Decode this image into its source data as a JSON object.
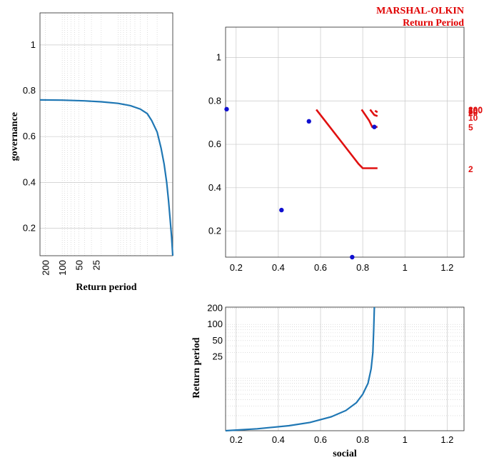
{
  "figure": {
    "title_line1": "MARSHAL-OLKIN",
    "title_line2": "Return Period"
  },
  "colors": {
    "curve": "#1f77b4",
    "isoline": "#e01010",
    "points": "#1010d0",
    "grid": "#c8c8c8"
  },
  "chart_data": [
    {
      "type": "line",
      "panel": "left",
      "xlabel": "Return period",
      "ylabel": "governance",
      "xscale": "log",
      "xdir": "reverse",
      "xticks": [
        200,
        100,
        50,
        25
      ],
      "xticklabels": [
        "200",
        "100",
        "50",
        "25"
      ],
      "yticks": [
        0.2,
        0.4,
        0.6,
        0.8,
        1
      ],
      "yticklabels": [
        "0.2",
        "0.4",
        "0.6",
        "0.8",
        "1"
      ],
      "ylim": [
        0.08,
        1.14
      ],
      "grid": true,
      "series": [
        {
          "points": [
            [
              250,
              0.76
            ],
            [
              100,
              0.759
            ],
            [
              40,
              0.756
            ],
            [
              20,
              0.752
            ],
            [
              10,
              0.745
            ],
            [
              6,
              0.735
            ],
            [
              4,
              0.72
            ],
            [
              3,
              0.7
            ],
            [
              2.5,
              0.67
            ],
            [
              2.0,
              0.62
            ],
            [
              1.7,
              0.55
            ],
            [
              1.5,
              0.48
            ],
            [
              1.35,
              0.4
            ],
            [
              1.25,
              0.32
            ],
            [
              1.17,
              0.24
            ],
            [
              1.1,
              0.16
            ],
            [
              1.05,
              0.08
            ]
          ]
        }
      ]
    },
    {
      "type": "scatter",
      "panel": "center",
      "xticks": [
        0.2,
        0.4,
        0.6,
        0.8,
        1,
        1.2
      ],
      "xticklabels": [
        "0.2",
        "0.4",
        "0.6",
        "0.8",
        "1",
        "1.2"
      ],
      "yticks": [
        0.2,
        0.4,
        0.6,
        0.8,
        1
      ],
      "yticklabels": [
        "0.2",
        "0.4",
        "0.6",
        "0.8",
        "1"
      ],
      "xlim": [
        0.15,
        1.28
      ],
      "ylim": [
        0.08,
        1.14
      ],
      "grid": true,
      "points": [
        [
          0.155,
          0.762
        ],
        [
          0.415,
          0.297
        ],
        [
          0.545,
          0.706
        ],
        [
          0.75,
          0.08
        ],
        [
          0.855,
          0.68
        ]
      ],
      "isolines": [
        {
          "label": "2",
          "label_y": 0.488,
          "points": [
            [
              0.58,
              0.76
            ],
            [
              0.62,
              0.71
            ],
            [
              0.7,
              0.61
            ],
            [
              0.78,
              0.51
            ],
            [
              0.8,
              0.49
            ],
            [
              0.87,
              0.49
            ]
          ]
        },
        {
          "label": "5",
          "label_y": 0.68,
          "points": [
            [
              0.795,
              0.76
            ],
            [
              0.83,
              0.71
            ],
            [
              0.845,
              0.68
            ],
            [
              0.87,
              0.68
            ]
          ]
        },
        {
          "label": "10",
          "label_y": 0.725,
          "points": [
            [
              0.835,
              0.76
            ],
            [
              0.855,
              0.735
            ],
            [
              0.87,
              0.73
            ]
          ]
        },
        {
          "label": "20",
          "label_y": 0.748,
          "points": [
            [
              0.858,
              0.755
            ],
            [
              0.87,
              0.748
            ]
          ]
        },
        {
          "label": "50",
          "label_y": 0.755,
          "points": []
        },
        {
          "label": "100",
          "label_y": 0.76,
          "points": []
        },
        {
          "label": "200",
          "label_y": 0.762,
          "points": []
        }
      ]
    },
    {
      "type": "line",
      "panel": "bottom",
      "xlabel": "social",
      "ylabel": "Return period",
      "yscale": "log",
      "xticks": [
        0.2,
        0.4,
        0.6,
        0.8,
        1,
        1.2
      ],
      "xticklabels": [
        "0.2",
        "0.4",
        "0.6",
        "0.8",
        "1",
        "1.2"
      ],
      "yticks": [
        25,
        50,
        100,
        200
      ],
      "yticklabels": [
        "25",
        "50",
        "100",
        "200"
      ],
      "xlim": [
        0.15,
        1.28
      ],
      "grid": true,
      "series": [
        {
          "points": [
            [
              0.15,
              1.05
            ],
            [
              0.3,
              1.14
            ],
            [
              0.45,
              1.3
            ],
            [
              0.55,
              1.5
            ],
            [
              0.65,
              1.9
            ],
            [
              0.72,
              2.5
            ],
            [
              0.77,
              3.5
            ],
            [
              0.8,
              5
            ],
            [
              0.825,
              8
            ],
            [
              0.84,
              15
            ],
            [
              0.848,
              30
            ],
            [
              0.852,
              80
            ],
            [
              0.855,
              210
            ]
          ]
        }
      ]
    }
  ]
}
